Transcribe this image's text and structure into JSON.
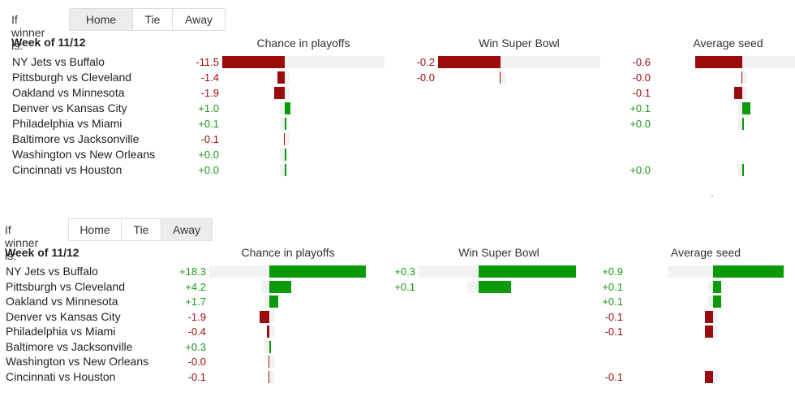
{
  "colors": {
    "positive": "#0a9a0a",
    "negative": "#9b0b0b",
    "track": "#f2f2f2"
  },
  "panels": [
    {
      "toggle": {
        "label": "If winner is:",
        "options": [
          "Home",
          "Tie",
          "Away"
        ],
        "selected": "Home"
      },
      "week": "Week of 11/12",
      "columns": [
        "Chance in playoffs",
        "Win Super Bowl",
        "Average seed"
      ],
      "rows": [
        {
          "game": "NY Jets vs Buffalo",
          "values": [
            "-11.5",
            "-0.2",
            "-0.6"
          ]
        },
        {
          "game": "Pittsburgh vs Cleveland",
          "values": [
            "-1.4",
            "-0.0",
            "-0.0"
          ]
        },
        {
          "game": "Oakland vs Minnesota",
          "values": [
            "-1.9",
            "",
            "-0.1"
          ]
        },
        {
          "game": "Denver vs Kansas City",
          "values": [
            "+1.0",
            "",
            "+0.1"
          ]
        },
        {
          "game": "Philadelphia vs Miami",
          "values": [
            "+0.1",
            "",
            "+0.0"
          ]
        },
        {
          "game": "Baltimore vs Jacksonville",
          "values": [
            "-0.1",
            "",
            ""
          ]
        },
        {
          "game": "Washington vs New Orleans",
          "values": [
            "+0.0",
            "",
            ""
          ]
        },
        {
          "game": "Cincinnati vs Houston",
          "values": [
            "+0.0",
            "",
            "+0.0"
          ]
        }
      ]
    },
    {
      "toggle": {
        "label": "If winner is:",
        "options": [
          "Home",
          "Tie",
          "Away"
        ],
        "selected": "Away"
      },
      "week": "Week of 11/12",
      "columns": [
        "Chance in playoffs",
        "Win Super Bowl",
        "Average seed"
      ],
      "rows": [
        {
          "game": "NY Jets vs Buffalo",
          "values": [
            "+18.3",
            "+0.3",
            "+0.9"
          ]
        },
        {
          "game": "Pittsburgh vs Cleveland",
          "values": [
            "+4.2",
            "+0.1",
            "+0.1"
          ]
        },
        {
          "game": "Oakland vs Minnesota",
          "values": [
            "+1.7",
            "",
            "+0.1"
          ]
        },
        {
          "game": "Denver vs Kansas City",
          "values": [
            "-1.9",
            "",
            "-0.1"
          ]
        },
        {
          "game": "Philadelphia vs Miami",
          "values": [
            "-0.4",
            "",
            "-0.1"
          ]
        },
        {
          "game": "Baltimore vs Jacksonville",
          "values": [
            "+0.3",
            "",
            ""
          ]
        },
        {
          "game": "Washington vs New Orleans",
          "values": [
            "-0.0",
            "",
            ""
          ]
        },
        {
          "game": "Cincinnati vs Houston",
          "values": [
            "-0.1",
            "",
            "-0.1"
          ]
        }
      ]
    }
  ]
}
